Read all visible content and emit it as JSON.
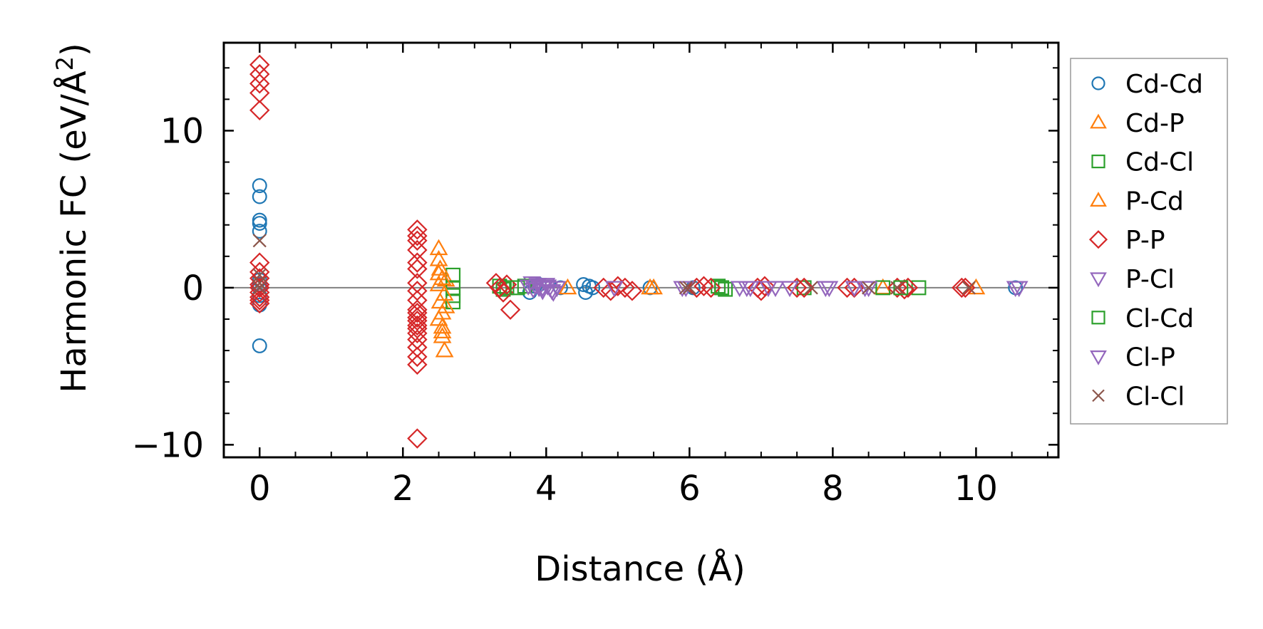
{
  "chart_data": {
    "type": "scatter",
    "xlabel": "Distance (Å)",
    "ylabel_main": "Harmonic FC (eV/Å",
    "ylabel_sup": "2",
    "ylabel_tail": ")",
    "xlim": [
      -0.5,
      11.15
    ],
    "ylim": [
      -10.8,
      15.6
    ],
    "xticks": [
      0,
      2,
      4,
      6,
      8,
      10
    ],
    "xtick_labels": [
      "0",
      "2",
      "4",
      "6",
      "8",
      "10"
    ],
    "yticks": [
      -10,
      0,
      10
    ],
    "ytick_labels": [
      "−10",
      "0",
      "10"
    ],
    "grid": false,
    "zero_line": true,
    "legend_position": "outside-right",
    "series": [
      {
        "name": "Cd-Cd",
        "marker": "circle",
        "color": "#1f77b4",
        "x": [
          0,
          0,
          0,
          0,
          0,
          0,
          0,
          0,
          0,
          0,
          0,
          3.77,
          3.84,
          3.9,
          4.2,
          4.52,
          4.55,
          4.6,
          4.65,
          5.45,
          6.05,
          10.55
        ],
        "y": [
          6.5,
          5.8,
          4.3,
          4.1,
          3.6,
          0.5,
          0.2,
          0,
          -0.5,
          -1.1,
          -3.7,
          -0.3,
          0.1,
          0.2,
          0,
          0.2,
          -0.3,
          0.1,
          0,
          0,
          0,
          0
        ]
      },
      {
        "name": "Cd-P",
        "marker": "triangle-up",
        "color": "#ff7f0e",
        "x": [
          2.5,
          2.5,
          2.5,
          2.5,
          2.52,
          2.55,
          2.55,
          2.55,
          2.58,
          2.6,
          4.3,
          5.45,
          5.5,
          8.7,
          10.0
        ],
        "y": [
          2.5,
          1.8,
          0.9,
          0.2,
          -0.9,
          -1.6,
          -2.5,
          -3.1,
          -4.0,
          0.5,
          0,
          0,
          0,
          0,
          0
        ]
      },
      {
        "name": "Cd-Cl",
        "marker": "square",
        "color": "#2ca02c",
        "x": [
          2.7,
          2.7,
          2.7,
          2.7,
          3.35,
          3.4,
          3.45,
          6.4,
          6.45,
          6.5,
          7.6,
          8.7,
          9.2
        ],
        "y": [
          0.8,
          0,
          -0.5,
          -0.9,
          0.1,
          -0.1,
          0,
          0.1,
          0,
          -0.1,
          0,
          0,
          0
        ]
      },
      {
        "name": "P-Cd",
        "marker": "triangle-up",
        "color": "#ff7f0e",
        "x": [
          2.52,
          2.55,
          2.58,
          2.6,
          2.5,
          2.55
        ],
        "y": [
          1.2,
          0.6,
          -0.4,
          -1.2,
          -2.0,
          -2.8
        ]
      },
      {
        "name": "P-P",
        "marker": "diamond",
        "color": "#d62728",
        "x": [
          0,
          0,
          0,
          0,
          0,
          0,
          0,
          0,
          0,
          0,
          0,
          0,
          0,
          0,
          2.2,
          2.2,
          2.2,
          2.2,
          2.2,
          2.2,
          2.2,
          2.2,
          2.2,
          2.2,
          2.2,
          2.2,
          2.2,
          2.2,
          2.2,
          2.2,
          2.2,
          2.2,
          2.2,
          2.2,
          2.2,
          3.3,
          3.35,
          3.4,
          3.45,
          3.5,
          4.8,
          4.9,
          5.0,
          5.1,
          5.2,
          6.1,
          6.2,
          6.3,
          6.95,
          7.0,
          7.05,
          7.5,
          7.6,
          8.2,
          8.3,
          8.9,
          9.0,
          9.05,
          9.8,
          9.85
        ],
        "y": [
          14.2,
          13.6,
          13.0,
          12.4,
          11.3,
          1.6,
          1.0,
          0.6,
          0.2,
          0,
          -0.3,
          -0.6,
          -1.0,
          -0.8,
          3.7,
          3.3,
          3.0,
          2.4,
          1.6,
          1.2,
          0.3,
          -0.2,
          -1.4,
          -1.6,
          -1.9,
          -2.1,
          -2.4,
          -2.9,
          -3.3,
          -3.8,
          -4.4,
          -4.9,
          -0.8,
          -2.6,
          -9.6,
          0.3,
          0,
          -0.3,
          0.2,
          -1.4,
          0,
          -0.2,
          0.1,
          0,
          -0.2,
          0,
          0.1,
          0,
          0,
          -0.2,
          0.1,
          0,
          0,
          0,
          0,
          0,
          -0.1,
          0,
          0,
          0
        ]
      },
      {
        "name": "P-Cl",
        "marker": "triangle-down",
        "color": "#9467bd",
        "x": [
          3.8,
          3.85,
          3.9,
          3.95,
          4.0,
          4.05,
          4.1,
          4.95,
          5.9,
          6.7,
          6.8,
          7.1,
          7.4,
          7.95,
          8.3,
          8.5,
          10.6
        ],
        "y": [
          0.3,
          0.1,
          0,
          -0.2,
          0.2,
          0,
          -0.3,
          0,
          0,
          0,
          0,
          0,
          0,
          0,
          0,
          0,
          0
        ]
      },
      {
        "name": "Cl-Cd",
        "marker": "square",
        "color": "#2ca02c",
        "x": [
          3.6,
          3.7,
          6.45,
          8.95
        ],
        "y": [
          0,
          0.1,
          0,
          0
        ]
      },
      {
        "name": "Cl-P",
        "marker": "triangle-down",
        "color": "#9467bd",
        "x": [
          3.75,
          3.82,
          3.88,
          3.95,
          4.02,
          4.08,
          4.15,
          5.95,
          6.85,
          7.2,
          7.9,
          8.45,
          10.55
        ],
        "y": [
          0.1,
          -0.1,
          0.2,
          0,
          0.1,
          -0.2,
          0,
          0,
          0,
          0,
          0,
          0,
          0
        ]
      },
      {
        "name": "Cl-Cl",
        "marker": "x",
        "color": "#8c564b",
        "x": [
          0,
          0,
          0,
          0,
          5.95,
          6.0,
          7.7,
          8.5,
          8.9,
          9.9
        ],
        "y": [
          3.0,
          0.8,
          0.3,
          0,
          0,
          0,
          0,
          0,
          0,
          0
        ]
      }
    ]
  }
}
